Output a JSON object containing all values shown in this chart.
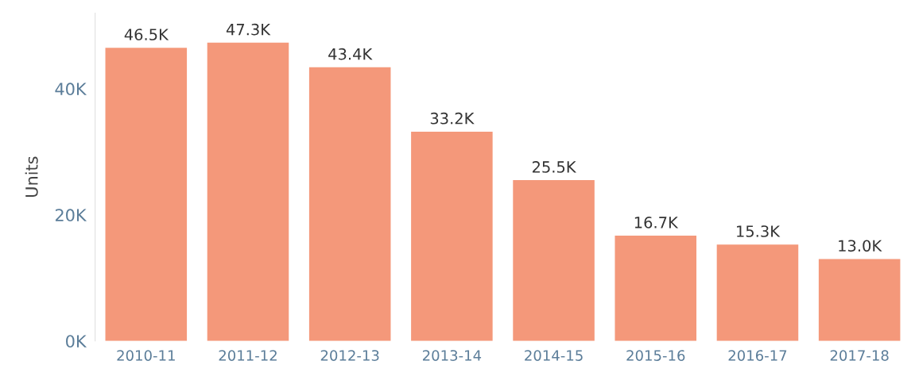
{
  "chart_data": {
    "type": "bar",
    "ylabel": "Units",
    "categories": [
      "2010-11",
      "2011-12",
      "2012-13",
      "2013-14",
      "2014-15",
      "2015-16",
      "2016-17",
      "2017-18"
    ],
    "values": [
      46500,
      47300,
      43400,
      33200,
      25500,
      16700,
      15300,
      13000
    ],
    "value_labels": [
      "46.5K",
      "47.3K",
      "43.4K",
      "33.2K",
      "25.5K",
      "16.7K",
      "15.3K",
      "13.0K"
    ],
    "color": "#f4987a",
    "ylim": [
      0,
      52000
    ],
    "yticks": [
      {
        "value": 0,
        "label": "0K"
      },
      {
        "value": 20000,
        "label": "20K"
      },
      {
        "value": 40000,
        "label": "40K"
      }
    ],
    "grid": false,
    "legend": false
  }
}
